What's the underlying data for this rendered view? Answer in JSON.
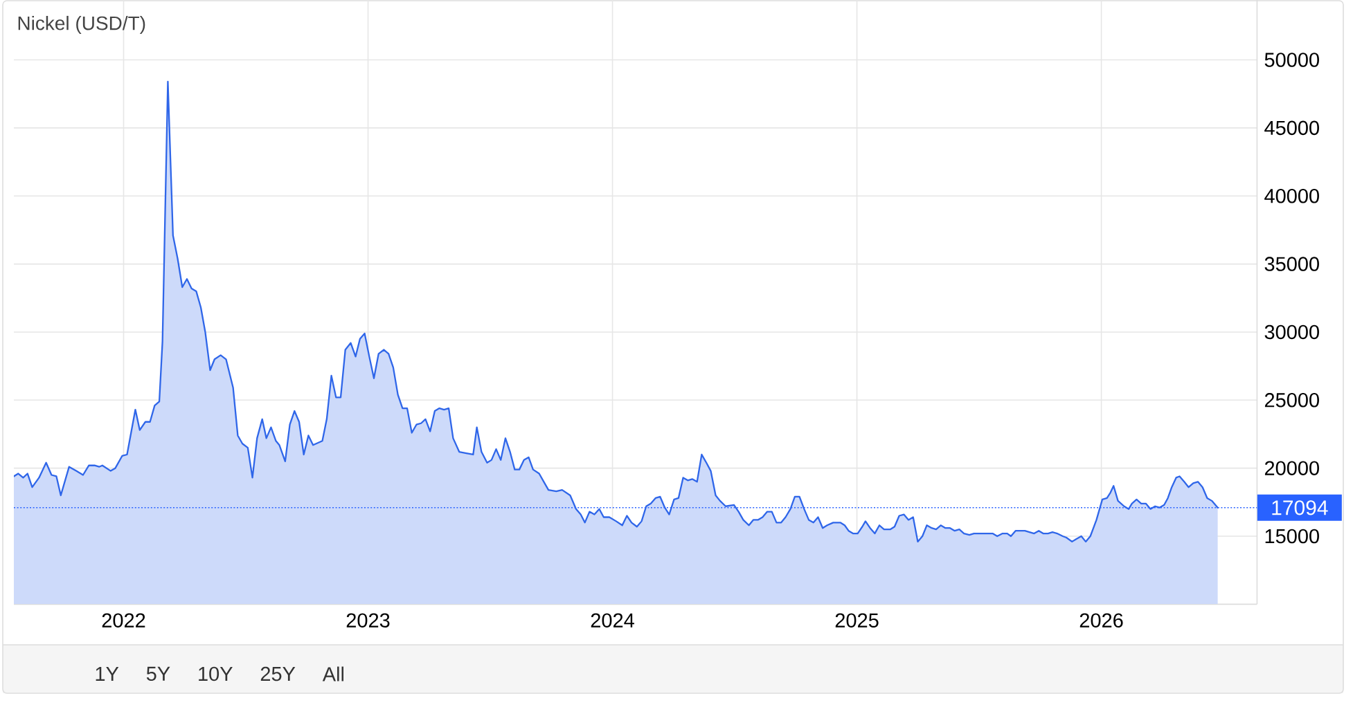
{
  "chart_data": {
    "type": "area",
    "title": "Nickel (USD/T)",
    "color": "#2f66e9",
    "x": [
      2021.551,
      2021.569,
      2021.589,
      2021.607,
      2021.626,
      2021.654,
      2021.683,
      2021.705,
      2021.725,
      2021.743,
      2021.777,
      2021.806,
      2021.834,
      2021.858,
      2021.881,
      2021.9,
      2021.913,
      2021.947,
      2021.966,
      2021.994,
      2022.014,
      2022.048,
      2022.066,
      2022.089,
      2022.108,
      2022.127,
      2022.146,
      2022.159,
      2022.181,
      2022.202,
      2022.221,
      2022.24,
      2022.259,
      2022.278,
      2022.297,
      2022.316,
      2022.334,
      2022.354,
      2022.372,
      2022.397,
      2022.419,
      2022.448,
      2022.467,
      2022.486,
      2022.508,
      2022.527,
      2022.546,
      2022.567,
      2022.584,
      2022.603,
      2022.623,
      2022.637,
      2022.661,
      2022.68,
      2022.699,
      2022.718,
      2022.737,
      2022.756,
      2022.775,
      2022.813,
      2022.831,
      2022.85,
      2022.869,
      2022.888,
      2022.907,
      2022.929,
      2022.949,
      2022.967,
      2022.986,
      2023.005,
      2023.024,
      2023.043,
      2023.065,
      2023.084,
      2023.103,
      2023.122,
      2023.141,
      2023.16,
      2023.179,
      2023.198,
      2023.217,
      2023.235,
      2023.254,
      2023.273,
      2023.292,
      2023.311,
      2023.33,
      2023.348,
      2023.373,
      2023.402,
      2023.43,
      2023.445,
      2023.464,
      2023.487,
      2023.505,
      2023.524,
      2023.543,
      2023.562,
      2023.581,
      2023.6,
      2023.619,
      2023.638,
      2023.657,
      2023.675,
      2023.7,
      2023.719,
      2023.738,
      2023.77,
      2023.794,
      2023.827,
      2023.851,
      2023.87,
      2023.887,
      2023.906,
      2023.926,
      2023.946,
      2023.964,
      2023.987,
      2024.015,
      2024.04,
      2024.059,
      2024.078,
      2024.1,
      2024.119,
      2024.138,
      2024.157,
      2024.176,
      2024.195,
      2024.214,
      2024.232,
      2024.252,
      2024.27,
      2024.289,
      2024.308,
      2024.327,
      2024.346,
      2024.365,
      2024.384,
      2024.402,
      2024.422,
      2024.44,
      2024.463,
      2024.497,
      2024.516,
      2024.535,
      2024.558,
      2024.576,
      2024.595,
      2024.614,
      2024.633,
      2024.652,
      2024.671,
      2024.69,
      2024.708,
      2024.728,
      2024.746,
      2024.765,
      2024.784,
      2024.803,
      2024.822,
      2024.841,
      2024.86,
      2024.878,
      2024.903,
      2024.932,
      2024.95,
      2024.966,
      2024.984,
      2025.003,
      2025.022,
      2025.035,
      2025.054,
      2025.073,
      2025.092,
      2025.111,
      2025.136,
      2025.154,
      2025.173,
      2025.192,
      2025.211,
      2025.23,
      2025.249,
      2025.268,
      2025.286,
      2025.306,
      2025.324,
      2025.343,
      2025.362,
      2025.381,
      2025.4,
      2025.419,
      2025.438,
      2025.46,
      2025.479,
      2025.517,
      2025.555,
      2025.574,
      2025.596,
      2025.615,
      2025.63,
      2025.649,
      2025.668,
      2025.687,
      2025.706,
      2025.725,
      2025.744,
      2025.762,
      2025.782,
      2025.8,
      2025.819,
      2025.842,
      2025.857,
      2025.88,
      2025.898,
      2025.918,
      2025.936,
      2025.955,
      2025.98,
      2026.004,
      2026.023,
      2026.037,
      2026.05,
      2026.068,
      2026.093,
      2026.112,
      2026.125,
      2026.144,
      2026.163,
      2026.182,
      2026.201,
      2026.22,
      2026.238,
      2026.257,
      2026.272,
      2026.288,
      2026.306,
      2026.32,
      2026.339,
      2026.357,
      2026.376,
      2026.395,
      2026.414,
      2026.433,
      2026.452,
      2026.476
    ],
    "values": [
      19400,
      19600,
      19300,
      19600,
      18600,
      19300,
      20400,
      19500,
      19400,
      18000,
      20100,
      19800,
      19500,
      20200,
      20200,
      20100,
      20200,
      19800,
      20000,
      20900,
      21000,
      24300,
      22800,
      23400,
      23400,
      24600,
      24900,
      29300,
      48400,
      37100,
      35400,
      33300,
      33900,
      33200,
      33000,
      31800,
      30000,
      27200,
      28000,
      28300,
      28000,
      25900,
      22400,
      21800,
      21500,
      19300,
      22200,
      23600,
      22200,
      23000,
      22000,
      21700,
      20500,
      23200,
      24200,
      23400,
      21000,
      22400,
      21700,
      22000,
      23600,
      26800,
      25200,
      25200,
      28700,
      29200,
      28200,
      29500,
      29900,
      28200,
      26600,
      28400,
      28700,
      28400,
      27400,
      25400,
      24400,
      24400,
      22600,
      23200,
      23300,
      23600,
      22700,
      24200,
      24400,
      24300,
      24400,
      22200,
      21200,
      21100,
      21000,
      23000,
      21200,
      20400,
      20600,
      21400,
      20600,
      22200,
      21200,
      19900,
      19900,
      20600,
      20800,
      19900,
      19600,
      19000,
      18400,
      18300,
      18400,
      18000,
      17000,
      16600,
      16000,
      16800,
      16600,
      17000,
      16400,
      16400,
      16100,
      15800,
      16500,
      16000,
      15700,
      16100,
      17200,
      17400,
      17800,
      17900,
      17100,
      16600,
      17700,
      17800,
      19300,
      19100,
      19200,
      19000,
      21000,
      20400,
      19800,
      18000,
      17600,
      17200,
      17300,
      16800,
      16200,
      15800,
      16200,
      16200,
      16400,
      16800,
      16800,
      16000,
      16000,
      16400,
      17000,
      17900,
      17900,
      17000,
      16200,
      16000,
      16400,
      15600,
      15800,
      16000,
      16000,
      15800,
      15400,
      15200,
      15200,
      15700,
      16100,
      15600,
      15200,
      15800,
      15500,
      15500,
      15700,
      16500,
      16600,
      16200,
      16400,
      14600,
      15000,
      15800,
      15600,
      15500,
      15800,
      15600,
      15600,
      15400,
      15500,
      15200,
      15100,
      15200,
      15200,
      15200,
      15000,
      15200,
      15200,
      15000,
      15400,
      15400,
      15400,
      15300,
      15200,
      15400,
      15200,
      15200,
      15300,
      15200,
      15000,
      14900,
      14600,
      14800,
      15000,
      14600,
      15000,
      16200,
      17700,
      17800,
      18200,
      18700,
      17600,
      17200,
      17000,
      17400,
      17700,
      17400,
      17400,
      17000,
      17200,
      17100,
      17300,
      17800,
      18600,
      19300,
      19400,
      19000,
      18600,
      18900,
      19000,
      18600,
      17800,
      17600,
      17094
    ],
    "xlim": [
      2021.551,
      2026.637
    ],
    "xticks": [
      2022,
      2023,
      2024,
      2025,
      2026
    ],
    "ylim": [
      10000,
      54400
    ],
    "yticks": [
      15000,
      20000,
      25000,
      30000,
      35000,
      40000,
      45000,
      50000
    ],
    "grid": true,
    "ref_lines": [
      {
        "axis": "y",
        "value": 17094,
        "label": "17094",
        "color": "#2962ff",
        "line_style": "dotted"
      }
    ],
    "annotations": [
      "1Y",
      "5Y",
      "10Y",
      "25Y",
      "All"
    ]
  }
}
